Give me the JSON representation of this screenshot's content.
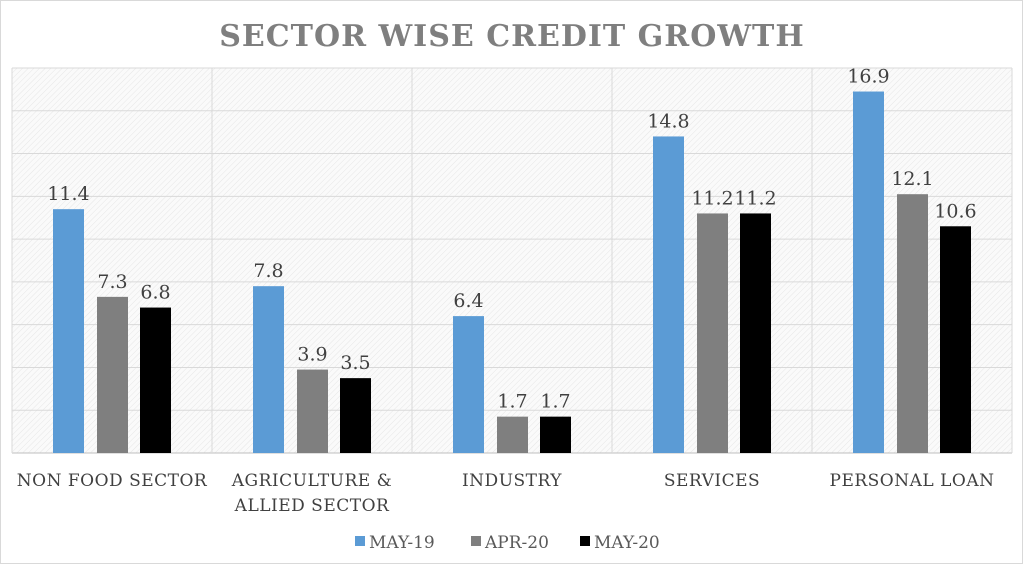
{
  "chart_data": {
    "type": "bar",
    "title": "SECTOR WISE CREDIT GROWTH",
    "categories": [
      [
        "NON FOOD SECTOR"
      ],
      [
        "AGRICULTURE &",
        "ALLIED SECTOR"
      ],
      [
        "INDUSTRY"
      ],
      [
        "SERVICES"
      ],
      [
        "PERSONAL LOAN"
      ]
    ],
    "series": [
      {
        "name": "MAY-19",
        "color": "#5b9bd5",
        "values": [
          11.4,
          7.8,
          6.4,
          14.8,
          16.9
        ]
      },
      {
        "name": "APR-20",
        "color": "#7f7f7f",
        "values": [
          7.3,
          3.9,
          1.7,
          11.2,
          12.1
        ]
      },
      {
        "name": "MAY-20",
        "color": "#000000",
        "values": [
          6.8,
          3.5,
          1.7,
          11.2,
          10.6
        ]
      }
    ],
    "ylim": [
      0,
      18
    ],
    "ytick_step": 2,
    "grid": true,
    "legend": "bottom",
    "xlabel": "",
    "ylabel": ""
  }
}
